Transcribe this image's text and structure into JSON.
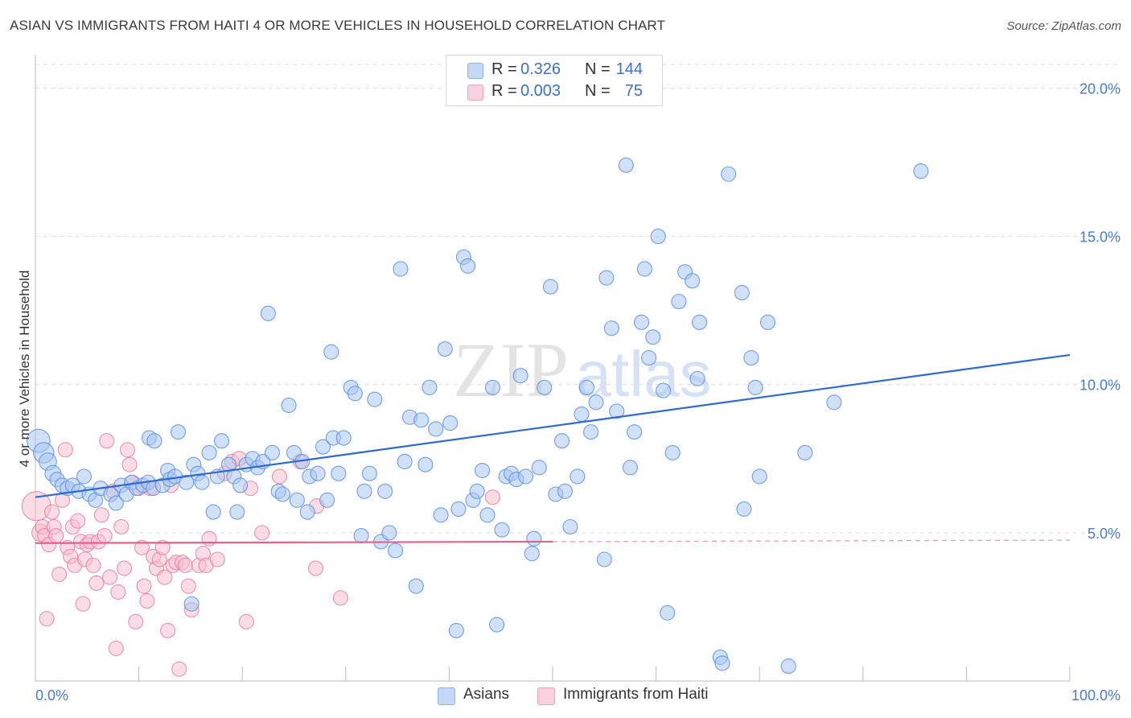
{
  "title": "ASIAN VS IMMIGRANTS FROM HAITI 4 OR MORE VEHICLES IN HOUSEHOLD CORRELATION CHART",
  "source": "Source: ZipAtlas.com",
  "watermark": {
    "left": "ZIP",
    "right": "atlas"
  },
  "legend_top": {
    "rows": [
      {
        "r_label": "R =",
        "r_value": "0.326",
        "n_label": "N =",
        "n_value": "144",
        "color": "#9bbcec"
      },
      {
        "r_label": "R =",
        "r_value": "0.003",
        "n_label": "N =",
        "n_value": "75",
        "color": "#f4b6ca"
      }
    ]
  },
  "legend_bottom": [
    {
      "label": "Asians",
      "color": "#9bbcec"
    },
    {
      "label": "Immigrants from Haiti",
      "color": "#f4b6ca"
    }
  ],
  "chart_data": {
    "type": "scatter",
    "title": "ASIAN VS IMMIGRANTS FROM HAITI 4 OR MORE VEHICLES IN HOUSEHOLD CORRELATION CHART",
    "xlabel": "",
    "ylabel": "4 or more Vehicles in Household",
    "x_tick_labels": [
      "0.0%",
      "100.0%"
    ],
    "y_tick_labels": [
      "5.0%",
      "10.0%",
      "15.0%",
      "20.0%"
    ],
    "y_ticks": [
      5,
      10,
      15,
      20
    ],
    "xlim": [
      0,
      100
    ],
    "ylim": [
      0,
      20.8
    ],
    "grid": true,
    "legend_position": "top-center",
    "series": [
      {
        "name": "Asians",
        "color": "#5b8fe0",
        "fill": "#a9c6f0",
        "trend": {
          "x": [
            0,
            100
          ],
          "y": [
            6.2,
            11.0
          ]
        },
        "points": [
          [
            0.3,
            8.1,
            1.6
          ],
          [
            0.8,
            7.7,
            1.4
          ],
          [
            1.2,
            7.4,
            1.2
          ],
          [
            1.7,
            7.0,
            1.1
          ],
          [
            2.1,
            6.8,
            1.0
          ],
          [
            2.6,
            6.6,
            1.0
          ],
          [
            3.1,
            6.5,
            1.0
          ],
          [
            3.6,
            6.6,
            1.0
          ],
          [
            4.2,
            6.4,
            1.0
          ],
          [
            4.7,
            6.9,
            1.0
          ],
          [
            5.2,
            6.3,
            1.0
          ],
          [
            5.8,
            6.1,
            1.0
          ],
          [
            6.3,
            6.5,
            1.0
          ],
          [
            7.3,
            6.3,
            1.0
          ],
          [
            7.8,
            6.0,
            1.0
          ],
          [
            8.3,
            6.6,
            1.0
          ],
          [
            8.8,
            6.3,
            1.0
          ],
          [
            9.3,
            6.7,
            1.0
          ],
          [
            9.8,
            6.5,
            1.0
          ],
          [
            10.4,
            6.6,
            1.0
          ],
          [
            10.9,
            6.7,
            1.0
          ],
          [
            11.4,
            6.5,
            1.0
          ],
          [
            11.0,
            8.2,
            1.0
          ],
          [
            11.5,
            8.1,
            1.0
          ],
          [
            12.3,
            6.6,
            1.0
          ],
          [
            12.8,
            7.1,
            1.0
          ],
          [
            13.0,
            6.8,
            1.0
          ],
          [
            13.5,
            6.9,
            1.0
          ],
          [
            13.8,
            8.4,
            1.0
          ],
          [
            14.6,
            6.7,
            1.0
          ],
          [
            15.1,
            2.6,
            1.0
          ],
          [
            15.3,
            7.3,
            1.0
          ],
          [
            15.7,
            7.0,
            1.0
          ],
          [
            16.1,
            6.7,
            1.0
          ],
          [
            16.8,
            7.7,
            1.0
          ],
          [
            17.2,
            5.7,
            1.0
          ],
          [
            17.6,
            6.9,
            1.0
          ],
          [
            18.0,
            8.1,
            1.0
          ],
          [
            18.7,
            7.3,
            1.0
          ],
          [
            19.2,
            6.9,
            1.0
          ],
          [
            19.5,
            5.7,
            1.0
          ],
          [
            19.8,
            6.6,
            1.0
          ],
          [
            20.4,
            7.3,
            1.0
          ],
          [
            21.0,
            7.5,
            1.0
          ],
          [
            21.5,
            7.2,
            1.0
          ],
          [
            22.0,
            7.4,
            1.0
          ],
          [
            22.5,
            12.4,
            1.0
          ],
          [
            22.9,
            7.7,
            1.0
          ],
          [
            23.5,
            6.4,
            1.0
          ],
          [
            23.9,
            6.3,
            1.0
          ],
          [
            24.5,
            9.3,
            1.0
          ],
          [
            25.0,
            7.7,
            1.0
          ],
          [
            25.3,
            6.1,
            1.0
          ],
          [
            25.8,
            7.4,
            1.0
          ],
          [
            26.3,
            5.7,
            1.0
          ],
          [
            26.5,
            6.9,
            1.0
          ],
          [
            27.3,
            7.0,
            1.0
          ],
          [
            27.8,
            7.9,
            1.0
          ],
          [
            28.2,
            6.1,
            1.0
          ],
          [
            28.6,
            11.1,
            1.0
          ],
          [
            28.8,
            8.2,
            1.0
          ],
          [
            29.3,
            7.0,
            1.0
          ],
          [
            29.8,
            8.2,
            1.0
          ],
          [
            30.5,
            9.9,
            1.0
          ],
          [
            30.9,
            9.7,
            1.0
          ],
          [
            31.5,
            4.9,
            1.0
          ],
          [
            31.8,
            6.4,
            1.0
          ],
          [
            32.3,
            7.0,
            1.0
          ],
          [
            32.8,
            9.5,
            1.0
          ],
          [
            33.4,
            4.7,
            1.0
          ],
          [
            33.8,
            6.4,
            1.0
          ],
          [
            34.2,
            5.0,
            1.0
          ],
          [
            34.8,
            4.4,
            1.0
          ],
          [
            35.3,
            13.9,
            1.0
          ],
          [
            35.7,
            7.4,
            1.0
          ],
          [
            36.2,
            8.9,
            1.0
          ],
          [
            36.8,
            3.2,
            1.0
          ],
          [
            37.3,
            8.8,
            1.0
          ],
          [
            37.7,
            7.3,
            1.0
          ],
          [
            38.1,
            9.9,
            1.0
          ],
          [
            38.7,
            8.5,
            1.0
          ],
          [
            39.2,
            5.6,
            1.0
          ],
          [
            39.6,
            11.2,
            1.0
          ],
          [
            40.1,
            8.7,
            1.0
          ],
          [
            40.7,
            1.7,
            1.0
          ],
          [
            40.9,
            5.8,
            1.0
          ],
          [
            41.4,
            14.3,
            1.0
          ],
          [
            41.8,
            14.0,
            1.0
          ],
          [
            42.3,
            6.1,
            1.0
          ],
          [
            42.7,
            6.4,
            1.0
          ],
          [
            43.2,
            7.1,
            1.0
          ],
          [
            43.7,
            5.6,
            1.0
          ],
          [
            44.2,
            9.9,
            1.0
          ],
          [
            44.6,
            1.9,
            1.0
          ],
          [
            45.1,
            5.1,
            1.0
          ],
          [
            45.5,
            6.9,
            1.0
          ],
          [
            46.0,
            7.0,
            1.0
          ],
          [
            46.5,
            6.8,
            1.0
          ],
          [
            46.9,
            10.3,
            1.0
          ],
          [
            47.4,
            6.9,
            1.0
          ],
          [
            48.0,
            4.3,
            1.0
          ],
          [
            48.2,
            4.8,
            1.0
          ],
          [
            48.7,
            7.2,
            1.0
          ],
          [
            49.2,
            9.9,
            1.0
          ],
          [
            49.8,
            13.3,
            1.0
          ],
          [
            50.3,
            6.3,
            1.0
          ],
          [
            50.9,
            8.1,
            1.0
          ],
          [
            51.2,
            6.4,
            1.0
          ],
          [
            51.7,
            5.2,
            1.0
          ],
          [
            52.4,
            6.9,
            1.0
          ],
          [
            52.8,
            9.0,
            1.0
          ],
          [
            53.3,
            9.9,
            1.0
          ],
          [
            53.7,
            8.4,
            1.0
          ],
          [
            54.2,
            9.4,
            1.0
          ],
          [
            55.0,
            4.1,
            1.0
          ],
          [
            55.2,
            13.6,
            1.0
          ],
          [
            55.7,
            11.9,
            1.0
          ],
          [
            56.2,
            9.1,
            1.0
          ],
          [
            57.1,
            17.4,
            1.0
          ],
          [
            57.5,
            7.2,
            1.0
          ],
          [
            57.9,
            8.4,
            1.0
          ],
          [
            58.6,
            12.1,
            1.0
          ],
          [
            58.9,
            13.9,
            1.0
          ],
          [
            59.3,
            10.9,
            1.0
          ],
          [
            59.7,
            11.6,
            1.0
          ],
          [
            60.2,
            15.0,
            1.0
          ],
          [
            60.7,
            9.8,
            1.0
          ],
          [
            61.1,
            2.3,
            1.0
          ],
          [
            61.6,
            7.7,
            1.0
          ],
          [
            62.2,
            12.8,
            1.0
          ],
          [
            62.8,
            13.8,
            1.0
          ],
          [
            63.5,
            13.5,
            1.0
          ],
          [
            64.2,
            12.1,
            1.0
          ],
          [
            64.0,
            10.2,
            1.0
          ],
          [
            66.2,
            0.8,
            1.0
          ],
          [
            66.4,
            0.6,
            1.0
          ],
          [
            67.0,
            17.1,
            1.0
          ],
          [
            68.3,
            13.1,
            1.0
          ],
          [
            68.5,
            5.8,
            1.0
          ],
          [
            69.2,
            10.9,
            1.0
          ],
          [
            69.6,
            9.9,
            1.0
          ],
          [
            70.0,
            6.9,
            1.0
          ],
          [
            70.8,
            12.1,
            1.0
          ],
          [
            72.8,
            0.5,
            1.0
          ],
          [
            74.4,
            7.7,
            1.0
          ],
          [
            77.2,
            9.4,
            1.0
          ],
          [
            85.6,
            17.2,
            1.0
          ]
        ]
      },
      {
        "name": "Immigrants from Haiti",
        "color": "#e87fa3",
        "fill": "#f6bfd0",
        "trend": {
          "x": [
            0,
            50
          ],
          "y": [
            4.65,
            4.7
          ],
          "dashed_to": 100
        },
        "points": [
          [
            0.1,
            5.9,
            2.0
          ],
          [
            0.5,
            5.0,
            1.2
          ],
          [
            0.7,
            5.2,
            1.0
          ],
          [
            0.9,
            4.9,
            1.0
          ],
          [
            1.1,
            2.1,
            1.0
          ],
          [
            1.3,
            4.6,
            1.0
          ],
          [
            1.6,
            5.7,
            1.0
          ],
          [
            1.8,
            5.2,
            1.0
          ],
          [
            2.0,
            4.9,
            1.0
          ],
          [
            2.3,
            3.6,
            1.0
          ],
          [
            2.6,
            6.1,
            1.0
          ],
          [
            2.9,
            7.8,
            1.0
          ],
          [
            3.1,
            4.5,
            1.0
          ],
          [
            3.4,
            4.2,
            1.0
          ],
          [
            3.6,
            5.2,
            1.0
          ],
          [
            3.8,
            3.9,
            1.0
          ],
          [
            4.1,
            5.4,
            1.0
          ],
          [
            4.4,
            4.7,
            1.0
          ],
          [
            4.6,
            2.6,
            1.0
          ],
          [
            4.8,
            4.1,
            1.0
          ],
          [
            5.0,
            4.6,
            1.0
          ],
          [
            5.3,
            4.7,
            1.0
          ],
          [
            5.6,
            3.9,
            1.0
          ],
          [
            5.9,
            3.3,
            1.0
          ],
          [
            6.1,
            4.7,
            1.0
          ],
          [
            6.4,
            5.6,
            1.0
          ],
          [
            6.7,
            4.9,
            1.0
          ],
          [
            6.9,
            8.1,
            1.0
          ],
          [
            7.2,
            3.5,
            1.0
          ],
          [
            7.5,
            6.4,
            1.0
          ],
          [
            7.8,
            1.1,
            1.0
          ],
          [
            8.0,
            3.0,
            1.0
          ],
          [
            8.3,
            5.2,
            1.0
          ],
          [
            8.6,
            3.8,
            1.0
          ],
          [
            8.9,
            7.8,
            1.0
          ],
          [
            9.1,
            7.3,
            1.0
          ],
          [
            9.4,
            6.7,
            1.0
          ],
          [
            9.7,
            2.0,
            1.0
          ],
          [
            10.0,
            6.5,
            1.0
          ],
          [
            10.3,
            4.5,
            1.0
          ],
          [
            10.5,
            3.2,
            1.0
          ],
          [
            10.8,
            2.7,
            1.0
          ],
          [
            11.1,
            6.5,
            1.0
          ],
          [
            11.4,
            4.2,
            1.0
          ],
          [
            11.7,
            3.8,
            1.0
          ],
          [
            12.0,
            4.1,
            1.0
          ],
          [
            12.3,
            4.5,
            1.0
          ],
          [
            12.5,
            3.5,
            1.0
          ],
          [
            12.8,
            1.7,
            1.0
          ],
          [
            13.1,
            6.6,
            1.0
          ],
          [
            13.3,
            3.9,
            1.0
          ],
          [
            13.6,
            4.0,
            1.0
          ],
          [
            13.9,
            0.4,
            1.0
          ],
          [
            14.2,
            4.0,
            1.0
          ],
          [
            14.5,
            3.9,
            1.0
          ],
          [
            14.8,
            3.2,
            1.0
          ],
          [
            15.1,
            2.4,
            1.0
          ],
          [
            15.8,
            3.9,
            1.0
          ],
          [
            16.2,
            4.3,
            1.0
          ],
          [
            16.5,
            3.9,
            1.0
          ],
          [
            16.8,
            4.8,
            1.0
          ],
          [
            17.6,
            4.1,
            1.0
          ],
          [
            18.3,
            7.0,
            1.0
          ],
          [
            19.0,
            7.4,
            1.0
          ],
          [
            19.7,
            7.5,
            1.0
          ],
          [
            20.4,
            2.0,
            1.0
          ],
          [
            20.8,
            6.5,
            1.0
          ],
          [
            21.9,
            5.0,
            1.0
          ],
          [
            23.6,
            6.9,
            1.0
          ],
          [
            25.6,
            7.4,
            1.0
          ],
          [
            27.1,
            3.8,
            1.0
          ],
          [
            27.2,
            5.9,
            1.0
          ],
          [
            29.5,
            2.8,
            1.0
          ],
          [
            44.2,
            6.2,
            1.0
          ]
        ]
      }
    ]
  }
}
